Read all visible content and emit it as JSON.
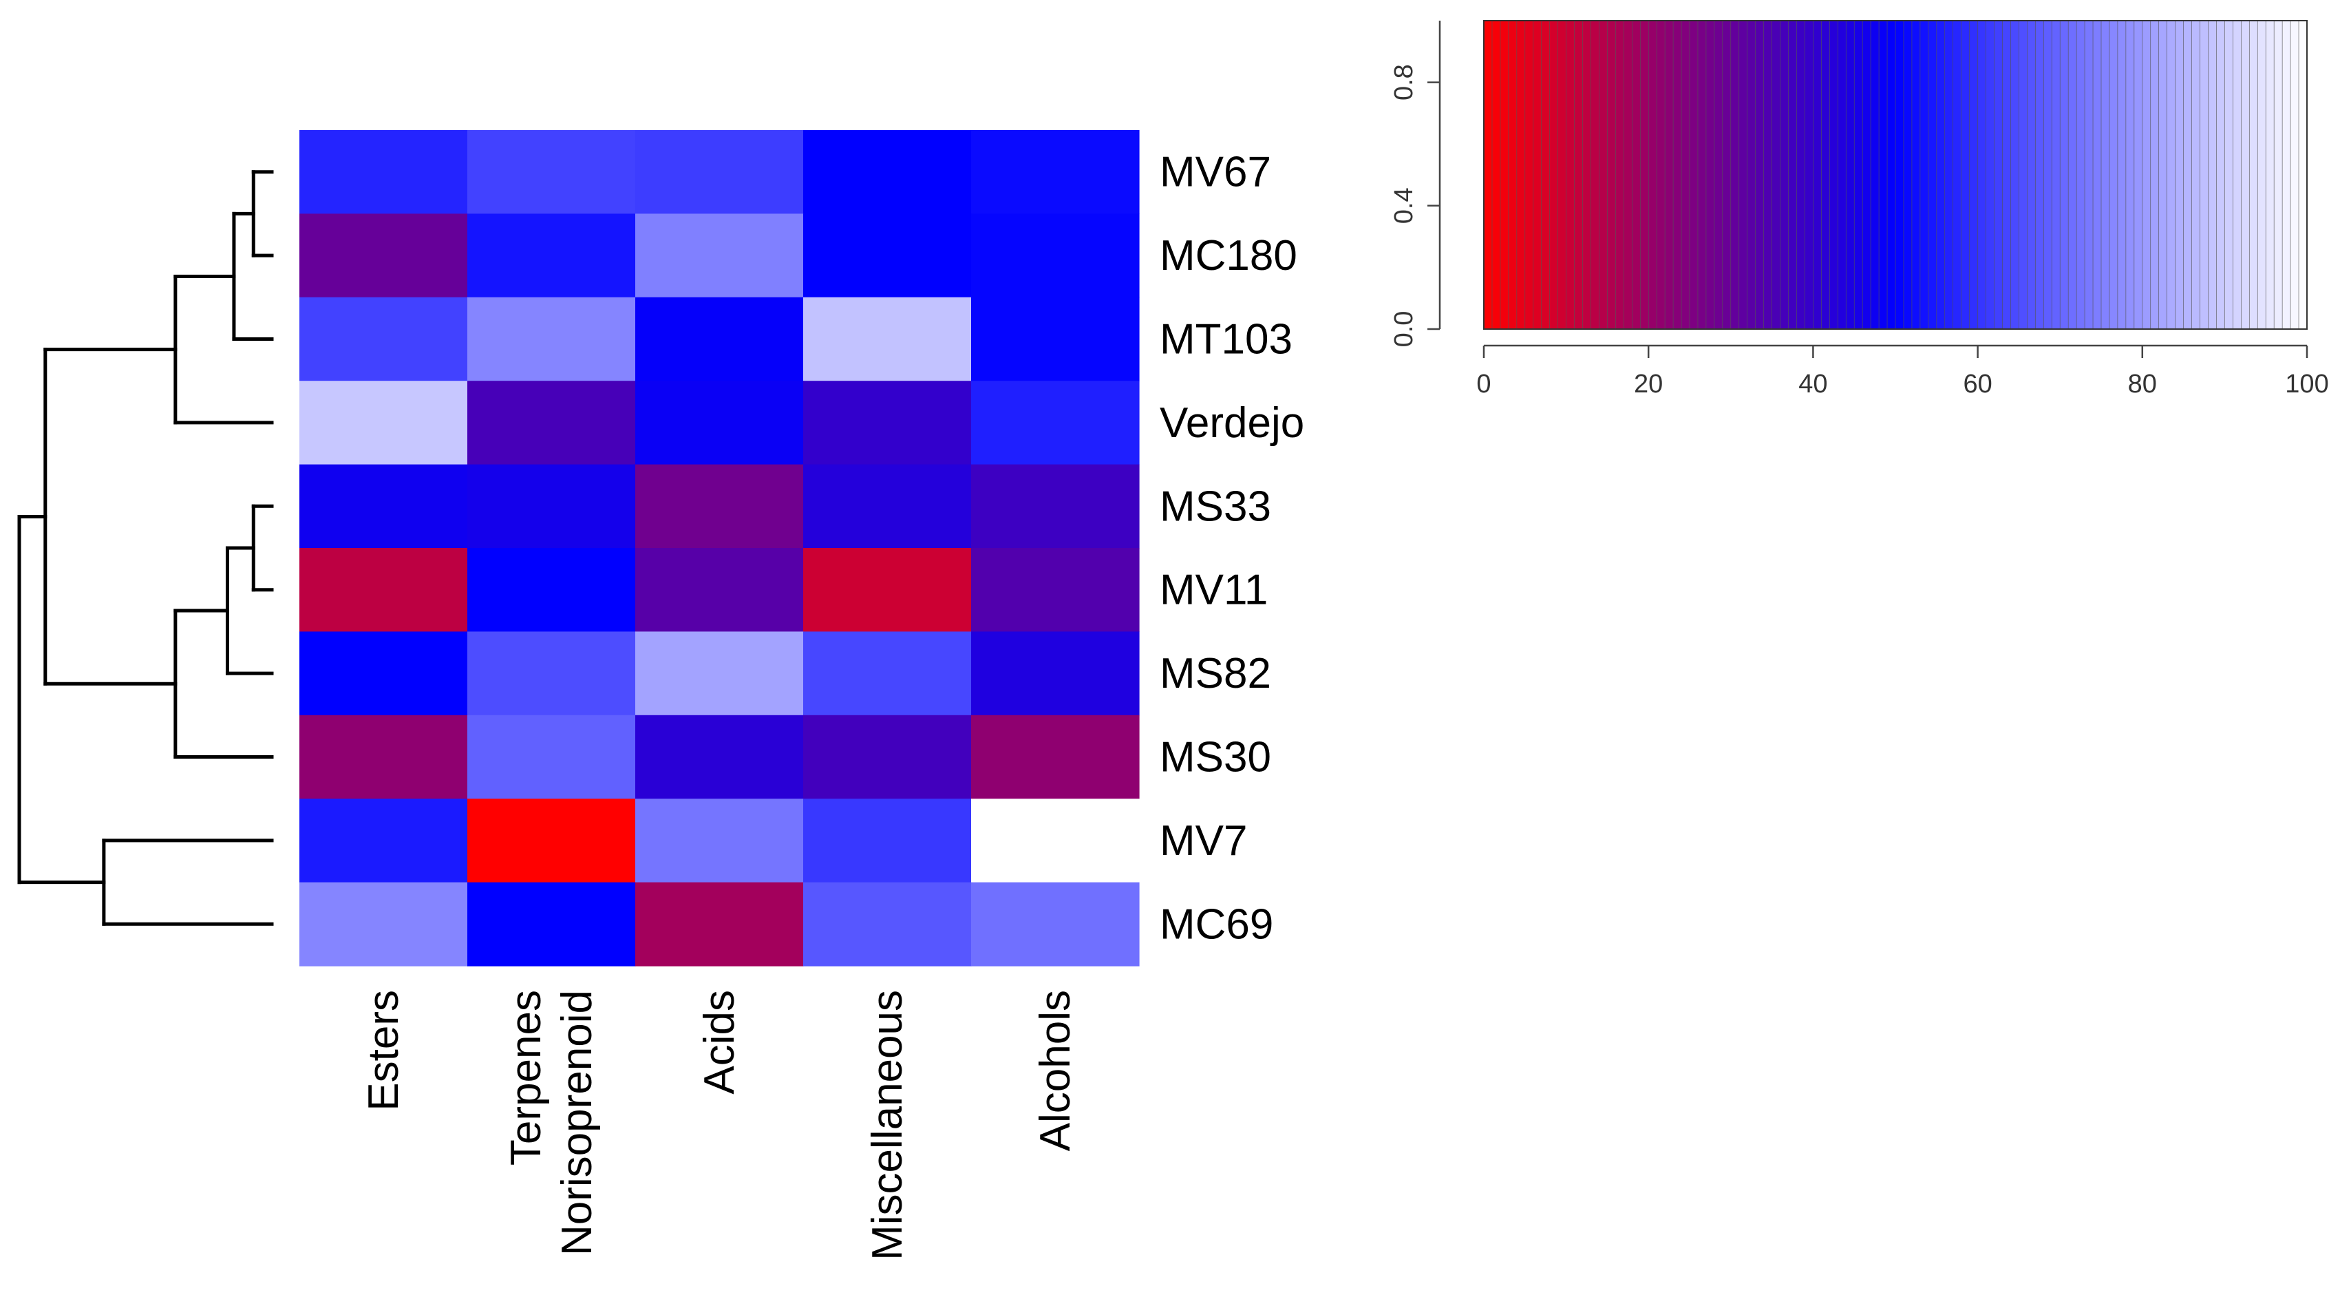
{
  "chart_data": {
    "type": "heatmap",
    "rows": [
      "MV67",
      "MC180",
      "MT103",
      "Verdejo",
      "MS33",
      "MV11",
      "MS82",
      "MS30",
      "MV7",
      "MC69"
    ],
    "columns": [
      "Esters",
      "Terpenes\nNorisoprenoid",
      "Acids",
      "Miscellaneous",
      "Alcohols"
    ],
    "values": [
      [
        57,
        63,
        62,
        50,
        52
      ],
      [
        30,
        54,
        75,
        50,
        51
      ],
      [
        63,
        76,
        49,
        88,
        51
      ],
      [
        89,
        36,
        48,
        40,
        56
      ],
      [
        47,
        46,
        28,
        43,
        38
      ],
      [
        13,
        50,
        33,
        10,
        34
      ],
      [
        50,
        65,
        82,
        64,
        44
      ],
      [
        22,
        69,
        42,
        37,
        22
      ],
      [
        55,
        0,
        73,
        61,
        100
      ],
      [
        76,
        50,
        18,
        67,
        72
      ]
    ],
    "value_scale": [
      0,
      100
    ],
    "color_scale": {
      "low": "#ff0000",
      "mid": "#0000ff",
      "high": "#ffffff",
      "mid_value": 50
    },
    "dendrogram": {
      "side": "left",
      "merges": [
        {
          "id": "a",
          "left": "MV67",
          "right": "MC180",
          "height": 0.3
        },
        {
          "id": "b",
          "left": "a",
          "right": "MT103",
          "height": 0.45
        },
        {
          "id": "c",
          "left": "b",
          "right": "Verdejo",
          "height": 0.9
        },
        {
          "id": "d",
          "left": "MS33",
          "right": "MV11",
          "height": 0.3
        },
        {
          "id": "e",
          "left": "d",
          "right": "MS82",
          "height": 0.5
        },
        {
          "id": "f",
          "left": "e",
          "right": "MS30",
          "height": 0.9
        },
        {
          "id": "g",
          "left": "c",
          "right": "f",
          "height": 1.9
        },
        {
          "id": "h",
          "left": "MV7",
          "right": "MC69",
          "height": 1.45
        },
        {
          "id": "root",
          "left": "g",
          "right": "h",
          "height": 2.1
        }
      ]
    },
    "color_key": {
      "xlim": [
        0,
        100
      ],
      "x_ticks": [
        "0",
        "20",
        "40",
        "60",
        "80",
        "100"
      ],
      "ylim": [
        0,
        1
      ],
      "y_ticks": [
        "0.0",
        "0.4",
        "0.8"
      ]
    }
  }
}
